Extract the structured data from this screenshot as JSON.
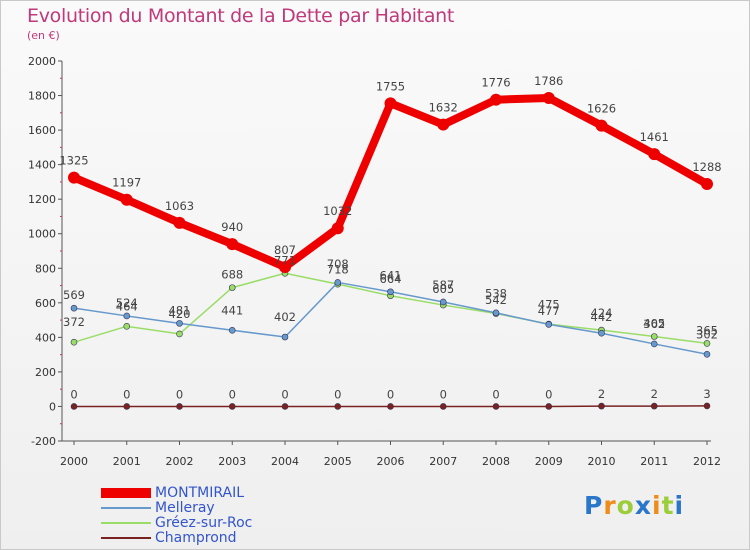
{
  "header": {
    "title": "Evolution du Montant de la Dette par Habitant",
    "subtitle": "(en €)"
  },
  "chart_data": {
    "type": "line",
    "title": "Evolution du Montant de la Dette par Habitant",
    "ylabel": "(en €)",
    "xlabel": "",
    "ylim": [
      -200,
      2000
    ],
    "yticks": [
      -200,
      0,
      200,
      400,
      600,
      800,
      1000,
      1200,
      1400,
      1600,
      1800,
      2000
    ],
    "categories": [
      "2000",
      "2001",
      "2002",
      "2003",
      "2004",
      "2005",
      "2006",
      "2007",
      "2008",
      "2009",
      "2010",
      "2011",
      "2012"
    ],
    "grid": false,
    "legend": "bottom-left",
    "series": [
      {
        "name": "MONTMIRAIL",
        "color": "#ee0000",
        "values": [
          1325,
          1197,
          1063,
          940,
          807,
          1032,
          1755,
          1632,
          1776,
          1786,
          1626,
          1461,
          1288
        ]
      },
      {
        "name": "Melleray",
        "color": "#6699cc",
        "values": [
          569,
          524,
          481,
          441,
          402,
          718,
          664,
          605,
          542,
          475,
          424,
          362,
          302
        ]
      },
      {
        "name": "Gréez-sur-Roc",
        "color": "#99dd66",
        "values": [
          372,
          464,
          420,
          688,
          771,
          708,
          641,
          587,
          538,
          477,
          442,
          405,
          365
        ]
      },
      {
        "name": "Champrond",
        "color": "#7a2222",
        "values": [
          0,
          0,
          0,
          0,
          0,
          0,
          0,
          0,
          0,
          0,
          2,
          2,
          3
        ]
      }
    ]
  },
  "branding": {
    "logo_text": "Proxiti",
    "letters": [
      "P",
      "r",
      "o",
      "x",
      "i",
      "t",
      "i"
    ],
    "letter_colors": [
      "#2a76c9",
      "#f08c1a",
      "#9ccd3a",
      "#2a76c9",
      "#f08c1a",
      "#9ccd3a",
      "#2a76c9"
    ]
  }
}
